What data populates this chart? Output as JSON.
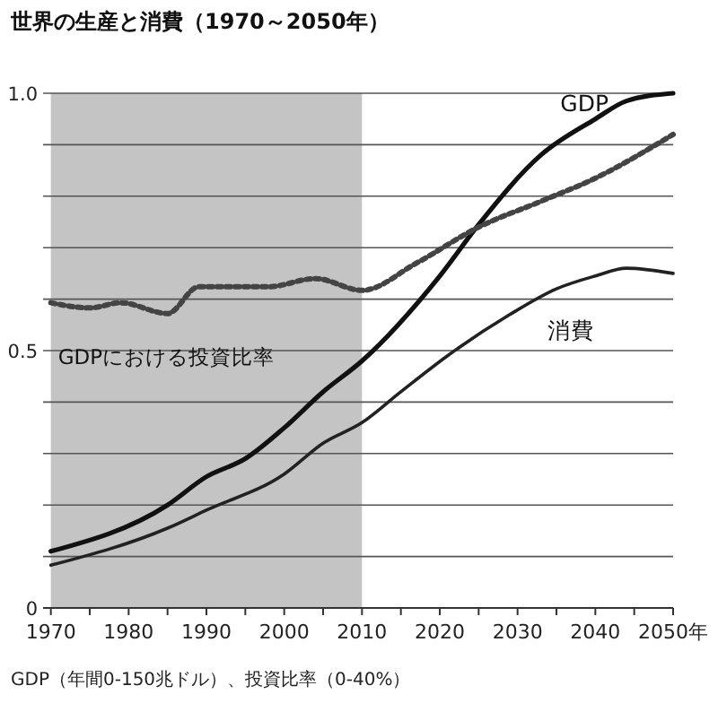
{
  "chart_data": {
    "type": "line",
    "title": "世界の生産と消費（1970～2050年）",
    "xlim": [
      1969,
      2050
    ],
    "xticks": [
      1970,
      {
        "value": 1975,
        "label": null
      },
      1980,
      {
        "value": 1985,
        "label": null
      },
      1990,
      {
        "value": 1995,
        "label": null
      },
      2000,
      {
        "value": 2005,
        "label": null
      },
      2010,
      {
        "value": 2015,
        "label": null
      },
      2020,
      {
        "value": 2025,
        "label": null
      },
      2030,
      {
        "value": 2035,
        "label": null
      },
      2040,
      {
        "value": 2045,
        "label": null
      },
      {
        "value": 2050,
        "label": "2050年"
      }
    ],
    "ylim": [
      0,
      1.0
    ],
    "yticks": [
      0,
      {
        "value": 0.1,
        "label": null
      },
      {
        "value": 0.2,
        "label": null
      },
      {
        "value": 0.3,
        "label": null
      },
      {
        "value": 0.4,
        "label": null
      },
      0.5,
      {
        "value": 0.6,
        "label": null
      },
      {
        "value": 0.7,
        "label": null
      },
      {
        "value": 0.8,
        "label": null
      },
      {
        "value": 0.9,
        "label": null
      },
      {
        "value": 1.0,
        "label": "1.0"
      }
    ],
    "grid": "y",
    "legend": false,
    "marker": "none",
    "bands": [
      {
        "axis": "x",
        "from": 1970,
        "to": 2010,
        "color": "#c4c4c4"
      }
    ],
    "series": [
      {
        "name": "GDP",
        "color": "#111111",
        "line_style": "solid",
        "x": [
          1970,
          1985,
          1990,
          1995,
          2000,
          2005,
          2010,
          2020,
          2025,
          2033,
          2040,
          2044,
          2050
        ],
        "values": [
          0.11,
          0.2,
          0.255,
          0.29,
          0.35,
          0.42,
          0.48,
          0.645,
          0.745,
          0.88,
          0.95,
          0.985,
          1.0
        ]
      },
      {
        "name": "消費",
        "color": "#222222",
        "line_style": "solid",
        "x": [
          1970,
          1985,
          1990,
          2000,
          2005,
          2010,
          2015,
          2021,
          2029,
          2035,
          2040,
          2044,
          2050
        ],
        "values": [
          0.083,
          0.155,
          0.19,
          0.26,
          0.32,
          0.36,
          0.42,
          0.49,
          0.57,
          0.62,
          0.645,
          0.66,
          0.65
        ]
      },
      {
        "name": "GDPにおける投資比率",
        "color": "#444444",
        "line_style": "dotted",
        "x": [
          1970,
          1975,
          1979,
          1985,
          1989,
          1998,
          2004,
          2010,
          2017,
          2025,
          2033,
          2040,
          2050
        ],
        "values": [
          0.593,
          0.583,
          0.593,
          0.572,
          0.624,
          0.624,
          0.64,
          0.617,
          0.67,
          0.74,
          0.79,
          0.835,
          0.92
        ]
      }
    ],
    "annotations": [
      "GDP（年間0-150兆ドル）、投資比率（0-40%）"
    ]
  }
}
